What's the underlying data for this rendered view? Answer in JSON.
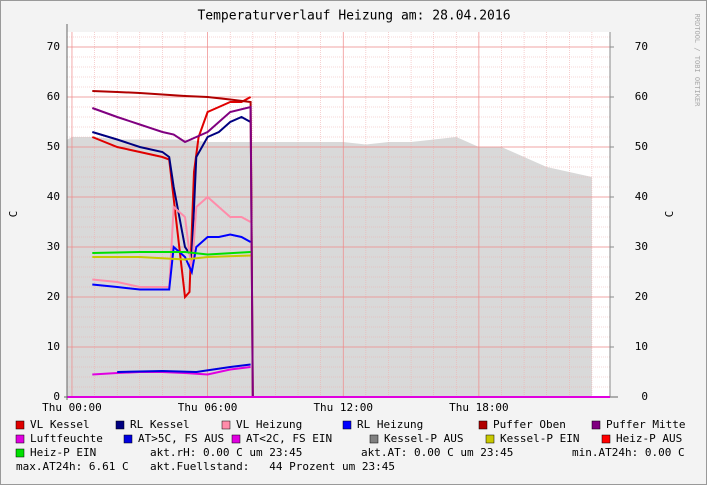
{
  "chart_data": {
    "type": "line",
    "title": "Temperaturverlauf Heizung am: 28.04.2016",
    "y_label": "C",
    "y2_label": "C",
    "side_text": "RRDTOOL / TOBI OETIKER",
    "xlim": [
      -0.22,
      23.8
    ],
    "ylim": [
      0,
      73
    ],
    "y2lim": [
      0,
      73
    ],
    "xticks": [
      {
        "value": 0,
        "label": "Thu 00:00"
      },
      {
        "value": 6,
        "label": "Thu 06:00"
      },
      {
        "value": 12,
        "label": "Thu 12:00"
      },
      {
        "value": 18,
        "label": "Thu 18:00"
      }
    ],
    "yticks": [
      0,
      10,
      20,
      30,
      40,
      50,
      60,
      70
    ],
    "y2ticks": [
      0,
      10,
      20,
      30,
      40,
      50,
      60,
      70
    ],
    "x_minor_ticks": [
      1,
      2,
      3,
      4,
      5,
      7,
      8,
      9,
      10,
      11,
      13,
      14,
      15,
      16,
      17,
      19,
      20,
      21,
      22,
      23
    ],
    "y_minor_ticks": [
      2,
      4,
      6,
      8,
      12,
      14,
      16,
      18,
      22,
      24,
      26,
      28,
      32,
      34,
      36,
      38,
      42,
      44,
      46,
      48,
      52,
      54,
      56,
      58,
      62,
      64,
      66,
      68,
      72
    ],
    "grid": true,
    "series": [
      {
        "name": "VL Kessel",
        "color": "#e00000",
        "x": [
          0.9,
          2,
          3,
          4,
          4.3,
          5.0,
          5.2,
          5.4,
          5.6,
          6,
          6.5,
          7,
          7.5,
          7.9
        ],
        "values": [
          52,
          50,
          49,
          48,
          47.5,
          20,
          21,
          45,
          52,
          57,
          58,
          59,
          59,
          60
        ]
      },
      {
        "name": "RL Kessel",
        "color": "#000080",
        "x": [
          0.9,
          2,
          3,
          4,
          4.3,
          4.5,
          5,
          5.3,
          5.5,
          6,
          6.5,
          7,
          7.5,
          7.9
        ],
        "values": [
          53,
          51.5,
          50,
          49,
          48,
          42,
          30,
          28,
          48,
          52,
          53,
          55,
          56,
          55
        ]
      },
      {
        "name": "VL Heizung",
        "color": "#ff8caa",
        "x": [
          0.9,
          2,
          3,
          4,
          4.3,
          4.5,
          5,
          5.3,
          5.5,
          6,
          6.5,
          7,
          7.5,
          7.9
        ],
        "values": [
          23.5,
          23,
          22,
          22,
          22,
          38,
          36,
          25,
          38,
          40,
          38,
          36,
          36,
          35
        ]
      },
      {
        "name": "RL Heizung",
        "color": "#0000ff",
        "x": [
          0.9,
          2,
          3,
          4,
          4.3,
          4.5,
          5,
          5.3,
          5.5,
          6,
          6.5,
          7,
          7.5,
          7.9
        ],
        "values": [
          22.5,
          22,
          21.5,
          21.5,
          21.5,
          30,
          28,
          25,
          30,
          32,
          32,
          32.5,
          32,
          31
        ]
      },
      {
        "name": "Puffer Oben",
        "color": "#b00000",
        "x": [
          0.9,
          2,
          3,
          4,
          5,
          6,
          7,
          7.9,
          8.0,
          23.8
        ],
        "values": [
          61.2,
          61,
          60.8,
          60.5,
          60.2,
          60,
          59.5,
          59,
          0,
          0
        ]
      },
      {
        "name": "Puffer Mitte",
        "color": "#800080",
        "x": [
          0.9,
          2,
          3,
          4,
          4.5,
          5,
          5.5,
          6,
          7,
          7.9,
          8.0
        ],
        "values": [
          57.8,
          56,
          54.5,
          53,
          52.5,
          51,
          52,
          53,
          57,
          58,
          0
        ]
      },
      {
        "name": "Luftfeuchte",
        "color": "#e000e0",
        "x": [
          0.9,
          2,
          3,
          4,
          5,
          6,
          7,
          7.9
        ],
        "values": [
          4.5,
          4.8,
          5,
          5,
          4.8,
          4.5,
          5.5,
          6
        ]
      },
      {
        "name": "AT>5C, FS AUS",
        "color": "#0000e0",
        "x": [
          2,
          4,
          5.5,
          7,
          7.9
        ],
        "values": [
          5,
          5.2,
          5,
          6,
          6.5
        ]
      },
      {
        "name": "AT<2C, FS EIN",
        "color": "#e000e0",
        "x": [
          -0.2,
          23.8
        ],
        "values": [
          0,
          0
        ]
      },
      {
        "name": "Kessel-P AUS",
        "color": "#808080",
        "area": true,
        "x": [
          -0.2,
          0,
          1,
          2,
          3,
          4,
          5,
          6,
          7,
          8,
          9,
          10,
          11,
          12,
          13,
          14,
          15,
          16,
          17,
          18,
          19,
          20,
          21,
          22,
          23
        ],
        "values": [
          51.5,
          52,
          52,
          51.5,
          51.5,
          51.5,
          51.5,
          51,
          51,
          51,
          51,
          51,
          51,
          51,
          50.5,
          51,
          51,
          51.5,
          52,
          50,
          50,
          48,
          46,
          45,
          44
        ]
      },
      {
        "name": "Kessel-P EIN",
        "color": "#c8c800",
        "x": [
          0.9,
          3,
          5,
          6,
          7.9
        ],
        "values": [
          28,
          28,
          27.5,
          28,
          28.3
        ]
      },
      {
        "name": "Heiz-P AUS",
        "color": "#ff0000",
        "x": [],
        "values": []
      },
      {
        "name": "Heiz-P EIN",
        "color": "#00e000",
        "x": [
          0.9,
          3,
          5,
          6,
          7.9
        ],
        "values": [
          28.8,
          29,
          29,
          28.5,
          29
        ]
      }
    ],
    "annotations": [
      "akt.rH: 0.00 C um 23:45",
      "akt.AT: 0.00 C um 23:45",
      "min.AT24h: 0.00 C",
      "max.AT24h: 6.61 C",
      "akt.Fuellstand:   44 Prozent um 23:45"
    ]
  }
}
